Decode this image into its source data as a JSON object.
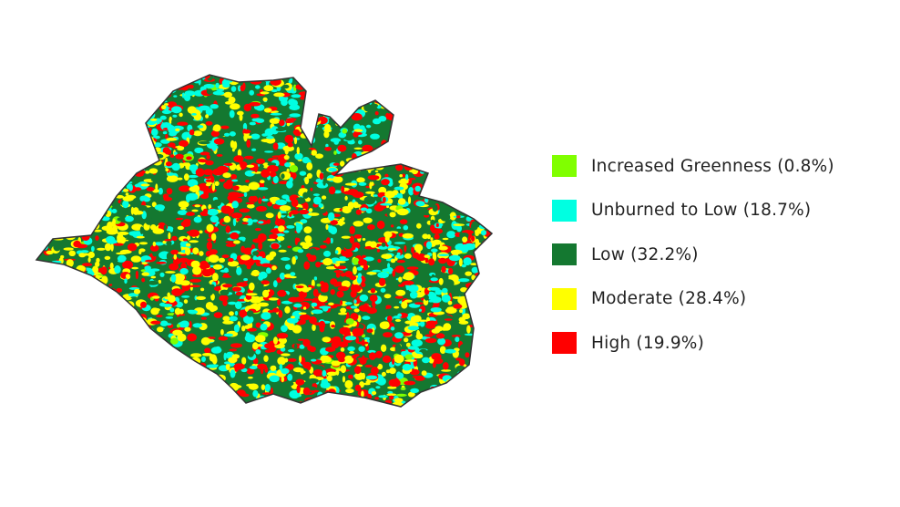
{
  "map": {
    "title_hidden": null,
    "colors": {
      "increased_greenness": "#80ff00",
      "unburned_to_low": "#00ffe1",
      "low": "#147830",
      "moderate": "#ffff00",
      "high": "#ff0000",
      "outline": "#333333"
    }
  },
  "legend": {
    "items": [
      {
        "label": "Increased Greenness (0.8%)",
        "color": "#80ff00",
        "percent": 0.8
      },
      {
        "label": "Unburned to Low (18.7%)",
        "color": "#00ffe1",
        "percent": 18.7
      },
      {
        "label": "Low (32.2%)",
        "color": "#147830",
        "percent": 32.2
      },
      {
        "label": "Moderate (28.4%)",
        "color": "#ffff00",
        "percent": 28.4
      },
      {
        "label": "High (19.9%)",
        "color": "#ff0000",
        "percent": 19.9
      }
    ]
  }
}
